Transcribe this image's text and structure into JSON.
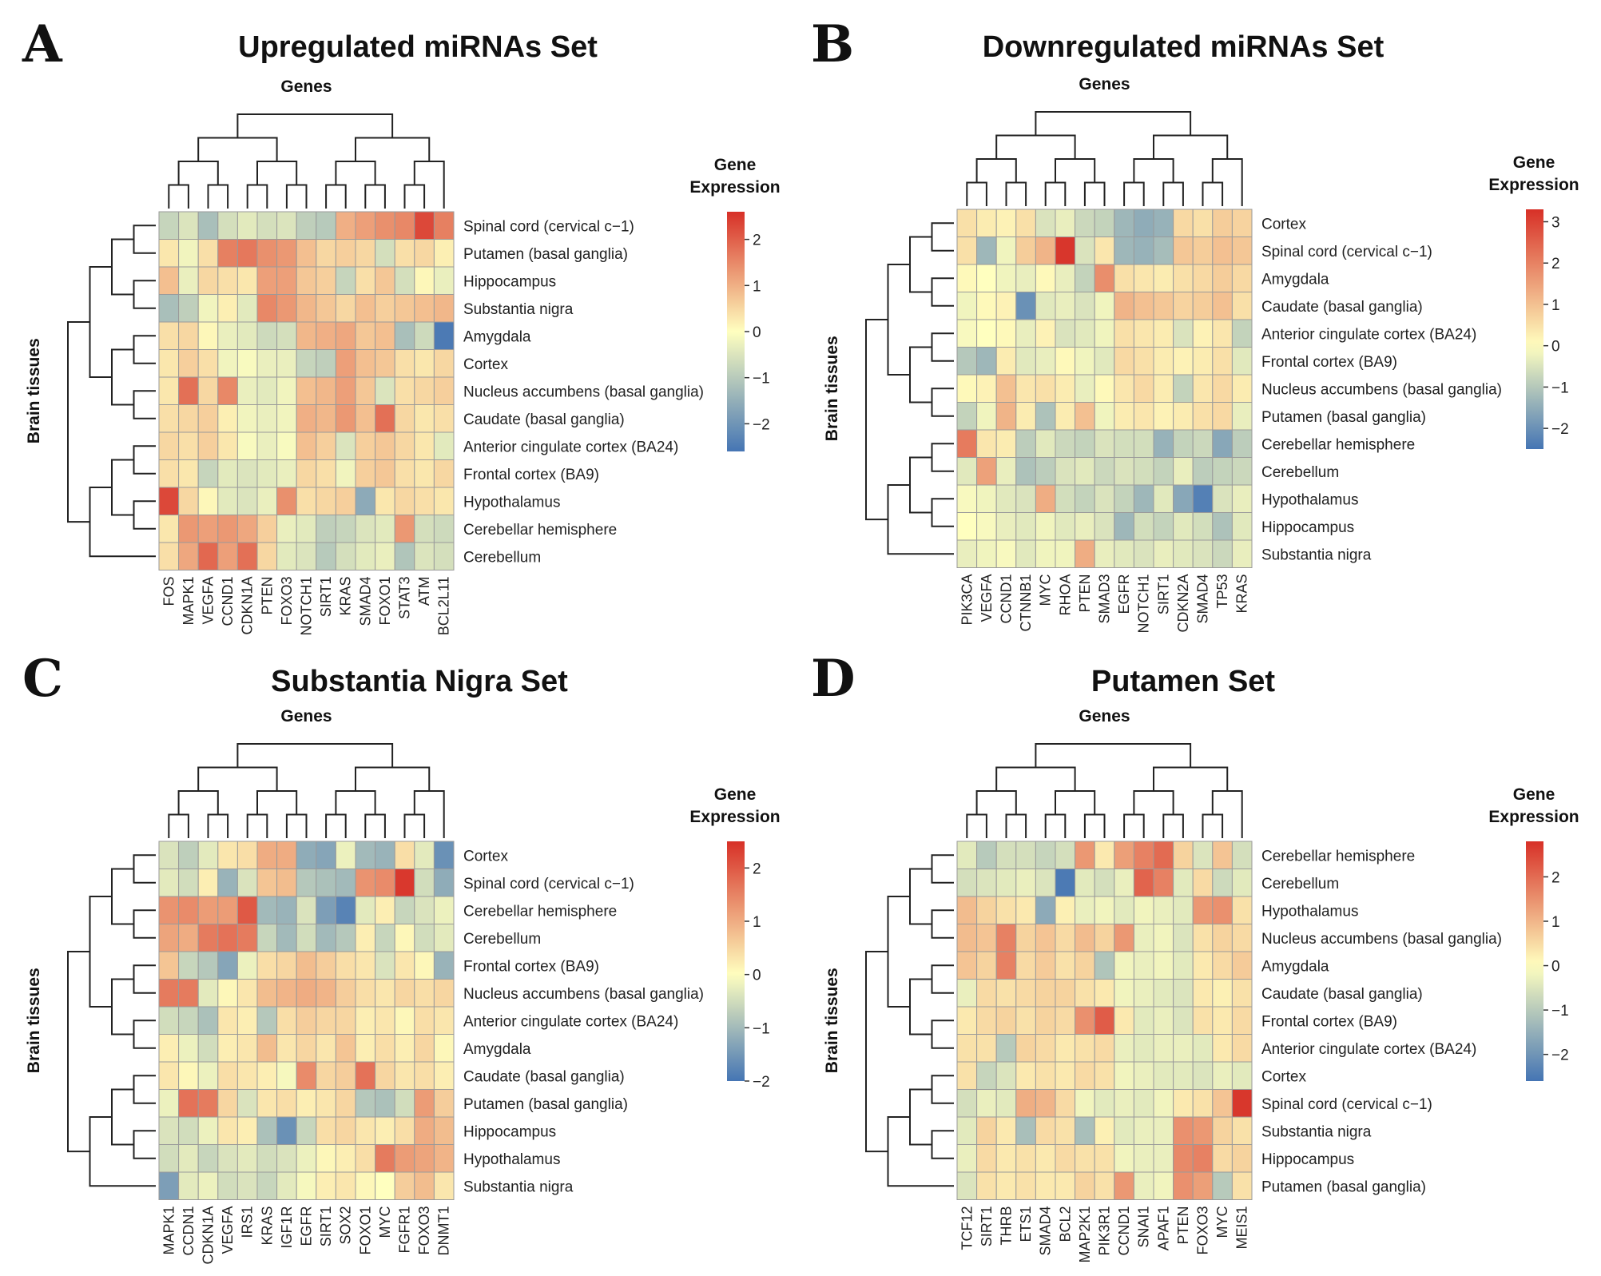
{
  "figure": {
    "panels": [
      {
        "letter": "A",
        "title": "Upregulated miRNAs Set"
      },
      {
        "letter": "B",
        "title": "Downregulated miRNAs Set"
      },
      {
        "letter": "C",
        "title": "Substantia Nigra Set"
      },
      {
        "letter": "D",
        "title": "Putamen Set"
      }
    ]
  },
  "colors": {
    "low": "#4575b4",
    "mid": "#ffffbf",
    "high": "#d73027",
    "grid": "#9a9a9a",
    "dendro": "#222222"
  },
  "chart_data": [
    {
      "type": "heatmap",
      "title": "Upregulated miRNAs Set",
      "xlabel": "Genes",
      "ylabel": "Brain tissues",
      "legend_title": [
        "Gene",
        "Expression"
      ],
      "legend_ticks": [
        "2",
        "1",
        "0",
        "−1",
        "−2"
      ],
      "legend_tick_values": [
        2,
        1,
        0,
        -1,
        -2
      ],
      "range": [
        -2.6,
        2.6
      ],
      "columns": [
        "FOS",
        "MAPK1",
        "VEGFA",
        "CCND1",
        "CDKN1A",
        "PTEN",
        "FOXO3",
        "NOTCH1",
        "SIRT1",
        "KRAS",
        "SMAD4",
        "FOXO1",
        "STAT3",
        "ATM",
        "BCL2L11"
      ],
      "rows": [
        "Spinal cord (cervical c−1)",
        "Putamen (basal ganglia)",
        "Hippocampus",
        "Substantia nigra",
        "Amygdala",
        "Cortex",
        "Nucleus accumbens (basal ganglia)",
        "Caudate (basal ganglia)",
        "Anterior cingulate cortex (BA24)",
        "Frontal cortex (BA9)",
        "Hypothalamus",
        "Cerebellar hemisphere",
        "Cerebellum"
      ],
      "values": [
        [
          -0.8,
          -0.5,
          -1.2,
          -0.6,
          -0.4,
          -0.6,
          -0.5,
          -0.9,
          -1.0,
          1.0,
          1.2,
          1.4,
          1.5,
          2.3,
          1.6
        ],
        [
          0.3,
          -0.2,
          0.4,
          1.6,
          1.7,
          1.4,
          1.3,
          0.8,
          0.5,
          0.6,
          0.5,
          -0.6,
          0.4,
          0.5,
          0.2
        ],
        [
          0.8,
          -0.3,
          0.5,
          0.4,
          0.3,
          1.2,
          1.2,
          0.7,
          0.6,
          -0.8,
          0.4,
          0.7,
          -0.6,
          0.1,
          -0.3
        ],
        [
          -1.2,
          -0.9,
          -0.2,
          0.2,
          -0.4,
          1.5,
          1.3,
          0.9,
          0.7,
          0.5,
          0.8,
          0.6,
          0.7,
          0.8,
          0.9
        ],
        [
          0.4,
          0.5,
          0.1,
          -0.3,
          -0.4,
          -0.7,
          -0.6,
          0.9,
          1.0,
          1.1,
          0.7,
          0.8,
          -1.2,
          -0.7,
          -2.5
        ],
        [
          0.3,
          0.6,
          0.4,
          -0.2,
          -0.1,
          -0.3,
          -0.3,
          -0.8,
          -0.9,
          1.2,
          0.8,
          0.7,
          0.4,
          0.3,
          0.5
        ],
        [
          0.3,
          1.8,
          0.5,
          1.5,
          -0.3,
          -0.4,
          -0.2,
          0.8,
          0.9,
          1.2,
          0.7,
          -0.5,
          0.4,
          0.5,
          0.6
        ],
        [
          0.4,
          0.5,
          0.6,
          0.2,
          -0.2,
          -0.3,
          -0.2,
          1.0,
          0.9,
          1.3,
          0.8,
          1.8,
          0.5,
          0.3,
          0.4
        ],
        [
          0.5,
          0.4,
          0.6,
          0.3,
          -0.1,
          -0.3,
          -0.1,
          0.8,
          0.6,
          -0.5,
          0.6,
          0.7,
          0.5,
          0.3,
          -0.4
        ],
        [
          0.4,
          0.3,
          -0.8,
          -0.4,
          -0.5,
          -0.4,
          -0.3,
          0.5,
          0.4,
          -0.2,
          0.6,
          0.7,
          0.4,
          0.3,
          0.5
        ],
        [
          2.3,
          0.5,
          0.1,
          -0.4,
          -0.5,
          -0.3,
          1.4,
          0.4,
          0.5,
          0.6,
          -1.6,
          0.3,
          0.5,
          0.4,
          0.3
        ],
        [
          0.3,
          1.3,
          1.2,
          1.3,
          1.1,
          0.6,
          -0.3,
          -0.4,
          -0.9,
          -0.8,
          -0.5,
          -0.4,
          1.3,
          -0.6,
          -0.7
        ],
        [
          0.4,
          1.1,
          1.9,
          1.2,
          1.8,
          0.5,
          -0.4,
          -0.5,
          -1.0,
          -0.6,
          -0.4,
          -0.3,
          -1.1,
          -0.5,
          -0.6
        ]
      ]
    },
    {
      "type": "heatmap",
      "title": "Downregulated miRNAs Set",
      "xlabel": "Genes",
      "ylabel": "Brain tissues",
      "legend_title": [
        "Gene",
        "Expression"
      ],
      "legend_ticks": [
        "3",
        "2",
        "1",
        "0",
        "−1",
        "−2"
      ],
      "legend_tick_values": [
        3,
        2,
        1,
        0,
        -1,
        -2
      ],
      "range": [
        -2.5,
        3.3
      ],
      "columns": [
        "PIK3CA",
        "VEGFA",
        "CCND1",
        "CTNNB1",
        "MYC",
        "RHOA",
        "PTEN",
        "SMAD3",
        "EGFR",
        "NOTCH1",
        "SIRT1",
        "CDKN2A",
        "SMAD4",
        "TP53",
        "KRAS"
      ],
      "rows": [
        "Cortex",
        "Spinal cord (cervical c−1)",
        "Amygdala",
        "Caudate (basal ganglia)",
        "Anterior cingulate cortex (BA24)",
        "Frontal cortex (BA9)",
        "Nucleus accumbens (basal ganglia)",
        "Putamen (basal ganglia)",
        "Cerebellar hemisphere",
        "Cerebellum",
        "Hypothalamus",
        "Hippocampus",
        "Substantia nigra"
      ],
      "values": [
        [
          0.5,
          0.3,
          0.2,
          0.5,
          -0.5,
          -0.3,
          -0.7,
          -0.8,
          -1.3,
          -1.5,
          -1.4,
          0.6,
          0.5,
          0.8,
          0.7
        ],
        [
          0.5,
          -1.3,
          -0.2,
          0.8,
          1.2,
          3.2,
          -0.5,
          0.4,
          -1.3,
          -1.4,
          -1.2,
          0.9,
          0.8,
          1.0,
          0.9
        ],
        [
          0.1,
          0.0,
          -0.2,
          -0.3,
          0.1,
          -0.3,
          -0.8,
          1.8,
          0.5,
          0.4,
          0.3,
          0.5,
          0.6,
          0.8,
          0.6
        ],
        [
          -0.2,
          0.1,
          0.2,
          -2.0,
          -0.4,
          -0.3,
          -0.5,
          -0.2,
          1.2,
          1.0,
          0.9,
          0.7,
          0.8,
          1.0,
          0.5
        ],
        [
          -0.1,
          0.0,
          0.1,
          -0.3,
          0.2,
          -0.5,
          -0.4,
          -0.2,
          0.5,
          0.4,
          0.3,
          -0.5,
          0.2,
          0.4,
          -0.8
        ],
        [
          -1.0,
          -1.3,
          0.3,
          -0.4,
          -0.3,
          0.1,
          -0.2,
          -0.4,
          0.6,
          0.5,
          0.3,
          0.2,
          0.3,
          0.5,
          -0.4
        ],
        [
          0.1,
          0.2,
          1.0,
          0.4,
          0.5,
          0.3,
          -0.3,
          0.1,
          0.4,
          0.6,
          0.3,
          -0.8,
          0.4,
          0.6,
          0.3
        ],
        [
          -0.8,
          -0.2,
          1.2,
          0.3,
          -1.1,
          0.3,
          1.0,
          -0.2,
          0.3,
          0.4,
          0.2,
          0.3,
          0.5,
          0.6,
          -0.3
        ],
        [
          2.1,
          0.4,
          0.3,
          -0.9,
          -0.4,
          -0.7,
          -0.8,
          -0.5,
          -0.6,
          -0.6,
          -1.4,
          -0.8,
          -0.7,
          -1.6,
          -0.9
        ],
        [
          -0.4,
          1.5,
          -0.3,
          -1.1,
          -0.9,
          -0.5,
          -0.4,
          -0.7,
          -0.5,
          -0.6,
          -0.8,
          -0.3,
          -0.9,
          -0.8,
          -0.7
        ],
        [
          -0.1,
          -0.2,
          -0.4,
          -0.5,
          1.3,
          -0.6,
          -0.8,
          -0.5,
          -0.8,
          -1.3,
          -0.4,
          -1.6,
          -2.3,
          -0.5,
          -0.3
        ],
        [
          0.0,
          -0.1,
          -0.3,
          -0.4,
          -0.2,
          -0.4,
          -0.3,
          -0.5,
          -1.3,
          -0.6,
          -0.8,
          -0.4,
          -0.6,
          -1.1,
          -0.4
        ],
        [
          -0.3,
          -0.2,
          -0.1,
          -0.4,
          -0.2,
          -0.2,
          1.3,
          -0.3,
          -0.4,
          -0.5,
          -0.3,
          -0.4,
          -0.5,
          -0.7,
          -0.3
        ]
      ]
    },
    {
      "type": "heatmap",
      "title": "Substantia Nigra Set",
      "xlabel": "Genes",
      "ylabel": "Brain tissues",
      "legend_title": [
        "Gene",
        "Expression"
      ],
      "legend_ticks": [
        "2",
        "1",
        "0",
        "−1",
        "−2"
      ],
      "legend_tick_values": [
        2,
        1,
        0,
        -1,
        -2
      ],
      "range": [
        -2.0,
        2.5
      ],
      "columns": [
        "MAPK1",
        "CCDN1",
        "CDKN1A",
        "VEGFA",
        "IRS1",
        "KRAS",
        "IGF1R",
        "EGFR",
        "SIRT1",
        "SOX2",
        "FOXO1",
        "MYC",
        "FGFR1",
        "FOXO3",
        "DNMT1"
      ],
      "rows": [
        "Cortex",
        "Spinal cord (cervical c−1)",
        "Cerebellar hemisphere",
        "Cerebellum",
        "Frontal cortex (BA9)",
        "Nucleus accumbens (basal ganglia)",
        "Anterior cingulate cortex (BA24)",
        "Amygdala",
        "Caudate (basal ganglia)",
        "Putamen (basal ganglia)",
        "Hippocampus",
        "Hypothalamus",
        "Substantia nigra"
      ],
      "values": [
        [
          -0.4,
          -0.7,
          -0.3,
          0.3,
          0.4,
          1.0,
          1.0,
          -1.2,
          -1.3,
          -0.2,
          -1.0,
          -1.1,
          0.4,
          -0.3,
          -1.6
        ],
        [
          -0.3,
          -0.5,
          0.2,
          -1.1,
          -0.4,
          0.7,
          0.8,
          -0.8,
          -0.9,
          -1.0,
          1.3,
          1.4,
          2.4,
          -0.5,
          -1.2
        ],
        [
          1.3,
          1.4,
          1.2,
          1.2,
          2.0,
          -1.0,
          -1.1,
          -0.4,
          -1.4,
          -1.8,
          -0.3,
          0.2,
          -0.6,
          -0.4,
          -0.2
        ],
        [
          1.1,
          1.0,
          1.6,
          1.7,
          1.6,
          -0.6,
          -1.0,
          -0.5,
          -1.0,
          -0.8,
          0.2,
          -0.6,
          0.1,
          -0.5,
          -0.3
        ],
        [
          0.7,
          -0.6,
          -0.8,
          -1.3,
          -0.2,
          0.4,
          0.5,
          0.8,
          0.6,
          0.4,
          0.3,
          -0.4,
          0.3,
          0.1,
          -1.1
        ],
        [
          1.6,
          1.6,
          -0.3,
          0.1,
          0.3,
          0.8,
          0.9,
          1.0,
          0.9,
          0.6,
          0.4,
          0.3,
          0.5,
          0.4,
          0.5
        ],
        [
          -0.5,
          -0.6,
          -0.9,
          0.3,
          0.2,
          -0.8,
          0.4,
          0.6,
          0.5,
          0.5,
          0.2,
          0.3,
          0.1,
          0.4,
          0.3
        ],
        [
          0.2,
          -0.2,
          -0.5,
          0.2,
          0.3,
          0.8,
          0.3,
          0.5,
          0.3,
          0.7,
          0.2,
          0.4,
          0.2,
          0.5,
          0.1
        ],
        [
          0.3,
          0.1,
          -0.2,
          0.4,
          0.3,
          0.2,
          -0.1,
          1.4,
          0.5,
          0.6,
          1.7,
          0.5,
          0.3,
          0.4,
          0.2
        ],
        [
          -0.2,
          1.7,
          1.6,
          0.5,
          -0.4,
          0.3,
          0.4,
          0.2,
          0.3,
          0.5,
          -0.8,
          -0.9,
          -0.5,
          1.2,
          0.6
        ],
        [
          -0.4,
          -0.5,
          -0.2,
          0.3,
          0.2,
          -0.9,
          -1.6,
          -0.6,
          0.4,
          0.5,
          0.3,
          0.2,
          0.4,
          1.0,
          0.8
        ],
        [
          -0.5,
          -0.3,
          -0.6,
          -0.4,
          -0.3,
          -0.5,
          -0.4,
          -0.2,
          0.1,
          0.2,
          0.4,
          1.6,
          1.2,
          1.1,
          0.9
        ],
        [
          -1.4,
          -0.3,
          -0.2,
          -0.5,
          -0.4,
          -0.6,
          -0.3,
          -0.1,
          0.2,
          0.3,
          0.1,
          0.0,
          0.6,
          0.8,
          0.3
        ]
      ]
    },
    {
      "type": "heatmap",
      "title": "Putamen Set",
      "xlabel": "Genes",
      "ylabel": "Brain tissues",
      "legend_title": [
        "Gene",
        "Expression"
      ],
      "legend_ticks": [
        "2",
        "1",
        "0",
        "−1",
        "−2"
      ],
      "legend_tick_values": [
        2,
        1,
        0,
        -1,
        -2
      ],
      "range": [
        -2.6,
        2.8
      ],
      "columns": [
        "TCF12",
        "SIRT1",
        "THRB",
        "ETS1",
        "SMAD4",
        "BCL2",
        "MAP2K1",
        "PIK3R1",
        "CCND1",
        "SNAI1",
        "APAF1",
        "PTEN",
        "FOXO3",
        "MYC",
        "MEIS1"
      ],
      "rows": [
        "Cerebellar hemisphere",
        "Cerebellum",
        "Hypothalamus",
        "Nucleus accumbens (basal ganglia)",
        "Amygdala",
        "Caudate (basal ganglia)",
        "Frontal cortex (BA9)",
        "Anterior cingulate cortex (BA24)",
        "Cortex",
        "Spinal cord (cervical c−1)",
        "Substantia nigra",
        "Hippocampus",
        "Putamen (basal ganglia)"
      ],
      "values": [
        [
          -0.4,
          -1.0,
          -0.6,
          -0.6,
          -0.8,
          -0.6,
          1.4,
          0.3,
          1.3,
          1.7,
          2.0,
          0.6,
          -0.5,
          0.8,
          -0.6
        ],
        [
          -0.6,
          -0.5,
          -0.4,
          -0.3,
          -0.5,
          -2.5,
          -0.4,
          -0.6,
          -0.3,
          2.1,
          1.7,
          -0.4,
          0.5,
          -0.7,
          -0.4
        ],
        [
          0.9,
          0.6,
          0.4,
          0.3,
          -1.6,
          0.2,
          -0.3,
          -0.2,
          -0.4,
          -0.2,
          -0.3,
          -0.4,
          1.4,
          1.5,
          0.4
        ],
        [
          0.9,
          0.8,
          1.7,
          0.6,
          0.8,
          0.5,
          0.9,
          0.6,
          1.4,
          -0.3,
          -0.2,
          -0.5,
          0.4,
          0.6,
          0.5
        ],
        [
          0.8,
          0.6,
          1.7,
          0.5,
          0.7,
          0.4,
          0.6,
          -1.1,
          -0.2,
          -0.3,
          -0.2,
          -0.4,
          0.3,
          0.5,
          0.7
        ],
        [
          -0.3,
          0.5,
          0.4,
          0.5,
          0.6,
          0.6,
          0.4,
          0.3,
          -0.2,
          -0.3,
          -0.4,
          -0.5,
          0.3,
          0.2,
          0.4
        ],
        [
          0.3,
          0.5,
          0.6,
          0.4,
          0.6,
          0.5,
          1.5,
          2.2,
          0.3,
          -0.4,
          -0.3,
          -0.5,
          0.4,
          0.3,
          0.5
        ],
        [
          0.4,
          0.4,
          -1.0,
          0.6,
          0.5,
          0.3,
          0.4,
          0.5,
          -0.3,
          -0.4,
          -0.3,
          -0.3,
          -0.4,
          0.3,
          0.5
        ],
        [
          0.4,
          -0.8,
          -0.5,
          0.3,
          0.4,
          0.3,
          0.5,
          0.4,
          -0.2,
          -0.3,
          -0.4,
          -0.4,
          -0.5,
          -0.3,
          -0.4
        ],
        [
          -0.6,
          -0.3,
          -0.4,
          1.1,
          1.0,
          0.5,
          -0.2,
          -0.4,
          -0.3,
          -0.4,
          -0.2,
          0.3,
          0.4,
          0.8,
          2.7
        ],
        [
          -0.4,
          0.6,
          0.3,
          -1.2,
          0.5,
          0.4,
          -1.2,
          0.2,
          -0.4,
          -0.3,
          -0.3,
          1.5,
          1.4,
          0.6,
          0.4
        ],
        [
          -0.3,
          0.5,
          0.3,
          0.4,
          0.3,
          0.5,
          0.4,
          0.4,
          -0.2,
          -0.3,
          -0.3,
          1.6,
          1.7,
          0.5,
          0.6
        ],
        [
          -0.5,
          0.4,
          0.3,
          0.4,
          0.3,
          0.3,
          0.6,
          0.4,
          1.4,
          -0.3,
          -0.2,
          1.5,
          1.3,
          -1.0,
          0.4
        ]
      ]
    }
  ]
}
